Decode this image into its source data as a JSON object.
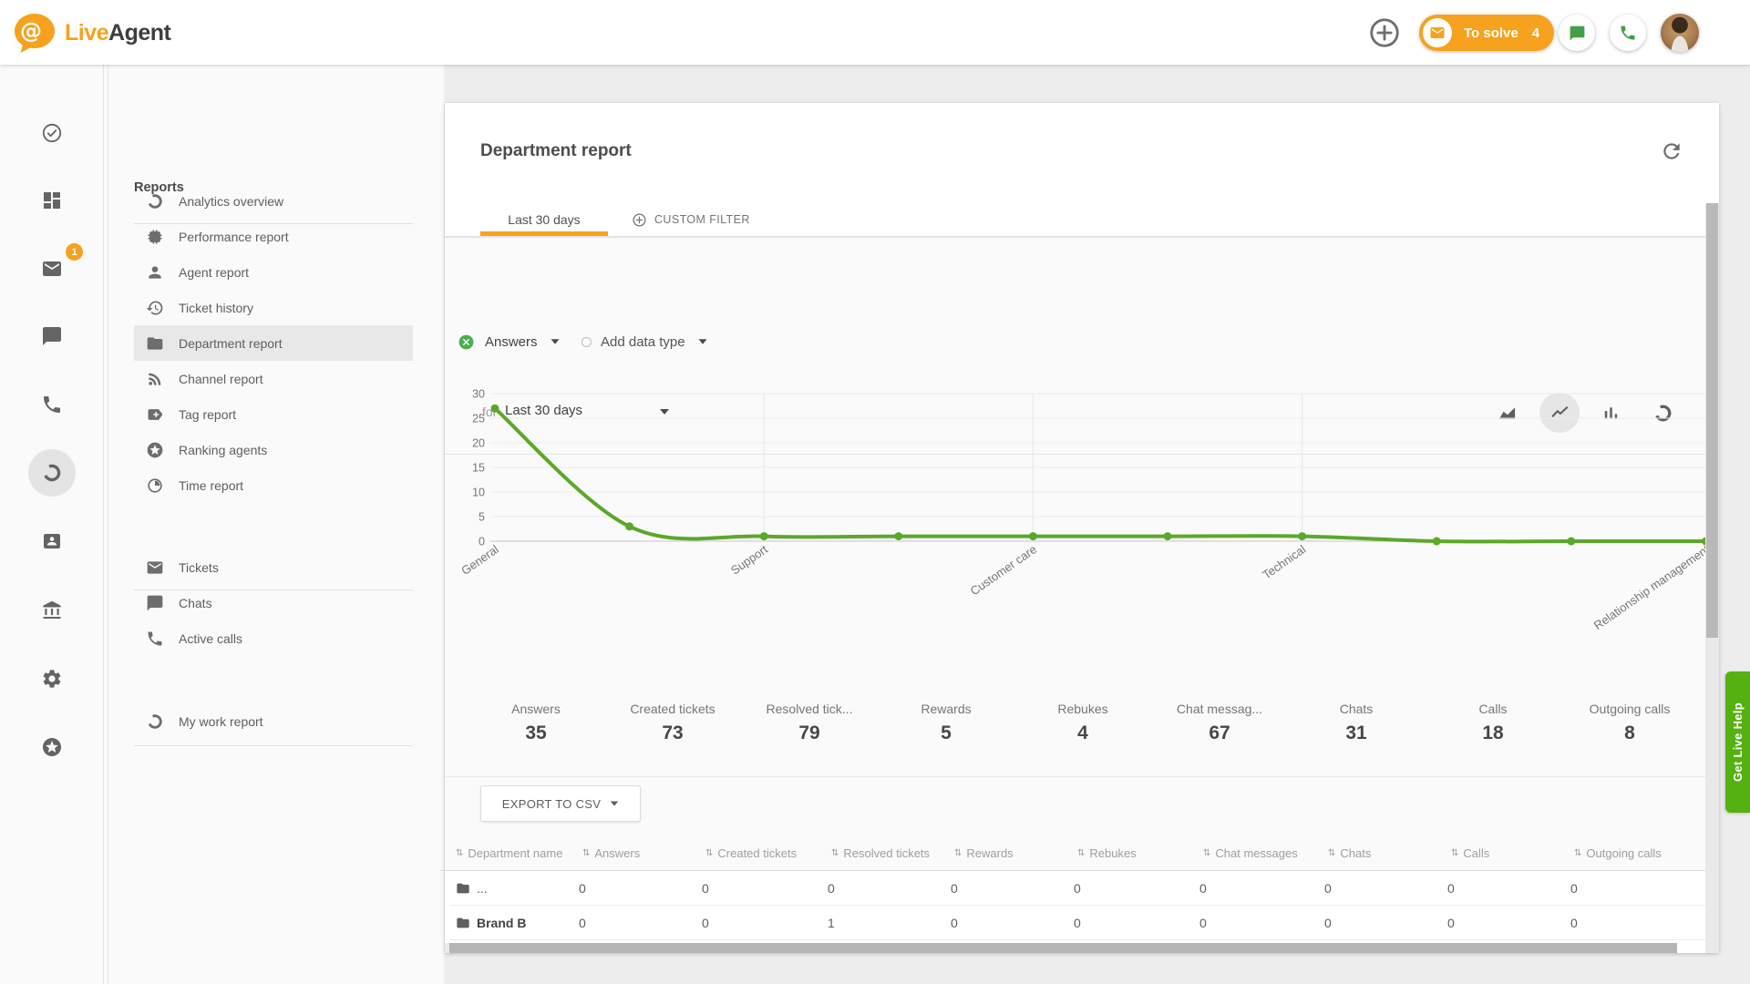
{
  "colors": {
    "orange": "#F6A21E",
    "chart_green": "#5BA829",
    "icon_green": "#43A047",
    "help_green": "#55B011",
    "badge_orange": "#F6A21E"
  },
  "header": {
    "logo": {
      "live": "Live",
      "agent": "Agent",
      "at_sign": "@"
    },
    "to_solve": {
      "label": "To solve",
      "count": "4"
    }
  },
  "rail": {
    "items": [
      {
        "name": "tasks",
        "icon": "check-circle"
      },
      {
        "name": "dashboard",
        "icon": "dashboard"
      },
      {
        "name": "tickets",
        "icon": "mail",
        "badge": "1"
      },
      {
        "name": "chats",
        "icon": "chat"
      },
      {
        "name": "calls",
        "icon": "phone"
      },
      {
        "name": "reports",
        "icon": "donut",
        "selected": true
      },
      {
        "name": "customers",
        "icon": "contact-card"
      },
      {
        "name": "company",
        "icon": "bank"
      },
      {
        "name": "settings",
        "icon": "gear"
      },
      {
        "name": "premium",
        "icon": "star-circle"
      }
    ]
  },
  "sidebar": {
    "title": "Reports",
    "groups": [
      [
        {
          "label": "Analytics overview",
          "icon": "donut"
        },
        {
          "label": "Performance report",
          "icon": "memory"
        },
        {
          "label": "Agent report",
          "icon": "person"
        },
        {
          "label": "Ticket history",
          "icon": "history"
        },
        {
          "label": "Department report",
          "icon": "folder",
          "selected": true
        },
        {
          "label": "Channel report",
          "icon": "rss"
        },
        {
          "label": "Tag report",
          "icon": "tag"
        },
        {
          "label": "Ranking agents",
          "icon": "star-circle"
        },
        {
          "label": "Time report",
          "icon": "clock"
        }
      ],
      [
        {
          "label": "Tickets",
          "icon": "mail"
        },
        {
          "label": "Chats",
          "icon": "chat"
        },
        {
          "label": "Active calls",
          "icon": "phone"
        }
      ],
      [
        {
          "label": "My work report",
          "icon": "donut"
        }
      ]
    ]
  },
  "report": {
    "title": "Department report",
    "tabs": [
      {
        "label": "Last 30 days",
        "active": true
      },
      {
        "label": "CUSTOM FILTER",
        "active": false
      }
    ],
    "filter": {
      "prefix": "for",
      "value": "Last 30 days"
    },
    "chart_type_buttons": [
      "area-chart",
      "line-chart",
      "bar-chart",
      "donut"
    ],
    "chart_type_selected": 1,
    "series_chip": "Answers",
    "add_chip": "Add data type",
    "stats": [
      {
        "label": "Answers",
        "value": "35"
      },
      {
        "label": "Created tickets",
        "value": "73"
      },
      {
        "label": "Resolved tick...",
        "value": "79"
      },
      {
        "label": "Rewards",
        "value": "5"
      },
      {
        "label": "Rebukes",
        "value": "4"
      },
      {
        "label": "Chat messag...",
        "value": "67"
      },
      {
        "label": "Chats",
        "value": "31"
      },
      {
        "label": "Calls",
        "value": "18"
      },
      {
        "label": "Outgoing calls",
        "value": "8"
      }
    ],
    "export_label": "EXPORT TO CSV",
    "table": {
      "columns": [
        "Department name",
        "Answers",
        "Created tickets",
        "Resolved tickets",
        "Rewards",
        "Rebukes",
        "Chat messages",
        "Chats",
        "Calls",
        "Outgoing calls"
      ],
      "rows": [
        {
          "name": "...",
          "bold": false,
          "values": [
            "0",
            "0",
            "0",
            "0",
            "0",
            "0",
            "0",
            "0",
            "0"
          ]
        },
        {
          "name": "Brand B",
          "bold": true,
          "values": [
            "0",
            "0",
            "1",
            "0",
            "0",
            "0",
            "0",
            "0",
            "0"
          ]
        }
      ]
    }
  },
  "chart_data": {
    "type": "line",
    "title": "",
    "categories": [
      "General",
      "",
      "Support",
      "",
      "Customer care",
      "",
      "Technical",
      "",
      "",
      "Relationship management"
    ],
    "series": [
      {
        "name": "Answers",
        "color": "#5BA829",
        "values": [
          27,
          3,
          1,
          1,
          1,
          1,
          1,
          0,
          0,
          0
        ]
      }
    ],
    "ylim": [
      0,
      30
    ],
    "ytick_step": 5,
    "grid": "horizontal lines every 5; vertical lines at labeled categories",
    "legend": "none"
  },
  "live_help": {
    "label": "Get Live Help"
  }
}
